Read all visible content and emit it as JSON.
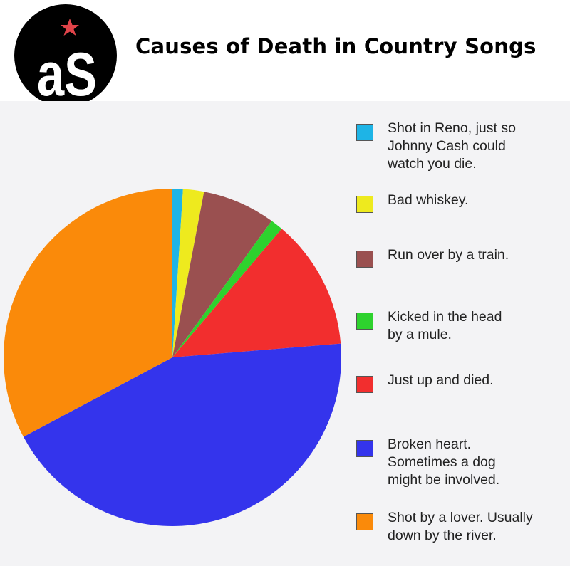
{
  "header": {
    "title": "Causes of Death in Country Songs",
    "logo_text": "aS"
  },
  "chart_data": {
    "type": "pie",
    "title": "Causes of Death in Country Songs",
    "start": "12 o'clock, clockwise",
    "legend_position": "right",
    "slices": [
      {
        "label": "Shot in Reno, just so\nJohnny Cash could\nwatch you die.",
        "value": 1,
        "color": "#1eb4e6"
      },
      {
        "label": "Bad whiskey.",
        "value": 2,
        "color": "#eeea1e"
      },
      {
        "label": "Run over by a train.",
        "value": 7,
        "color": "#9a5050"
      },
      {
        "label": "Kicked in the head\nby a mule.",
        "value": 1.2,
        "color": "#2ed22e"
      },
      {
        "label": "Just up and died.",
        "value": 12.5,
        "color": "#f22e2e"
      },
      {
        "label": "Broken heart.\nSometimes a dog\nmight be involved.",
        "value": 43.5,
        "color": "#3434ec"
      },
      {
        "label": "Shot by a lover. Usually\ndown by the river.",
        "value": 32.8,
        "color": "#fa8a0a"
      }
    ]
  }
}
